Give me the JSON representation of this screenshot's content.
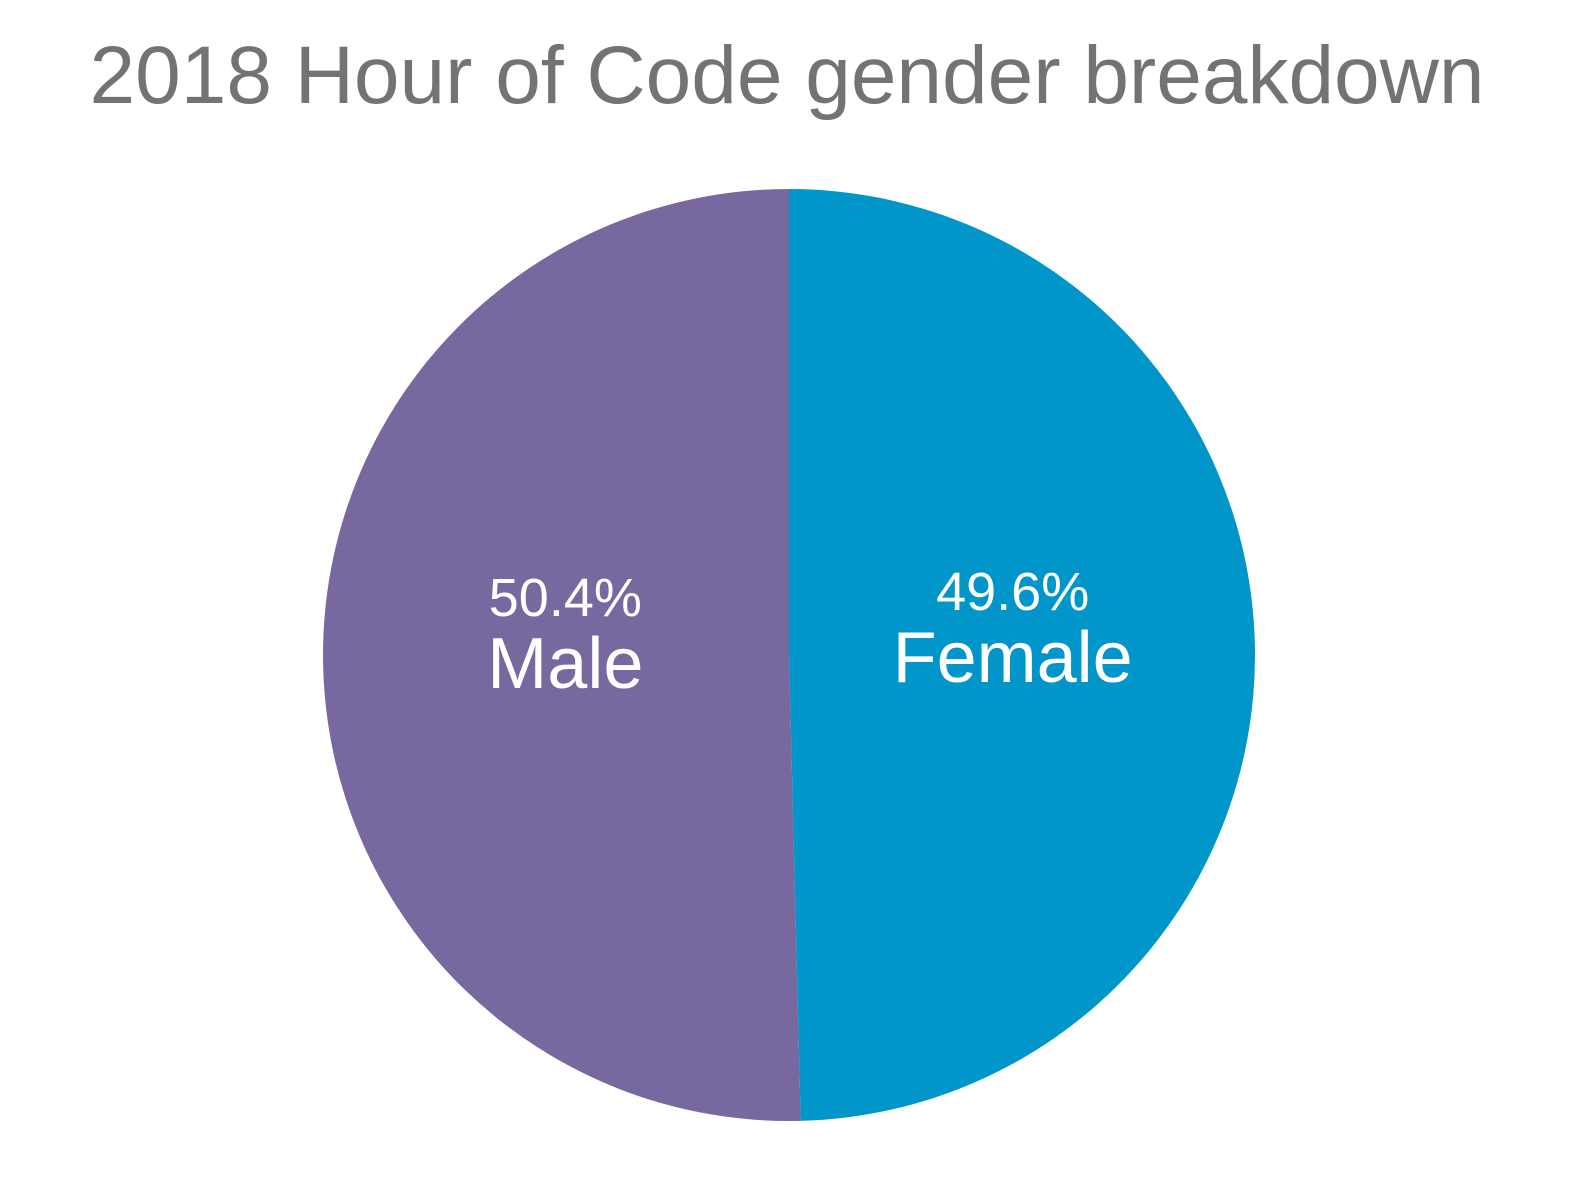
{
  "chart_data": {
    "type": "pie",
    "title": "2018 Hour of Code gender breakdown",
    "slices": [
      {
        "name": "Female",
        "value": 49.6,
        "value_label": "49.6%",
        "color": "#0096c9"
      },
      {
        "name": "Male",
        "value": 50.4,
        "value_label": "50.4%",
        "color": "#77689f"
      }
    ],
    "start_angle": "12 o'clock",
    "direction": "clockwise",
    "legend": "none",
    "data_labels": "inside"
  }
}
